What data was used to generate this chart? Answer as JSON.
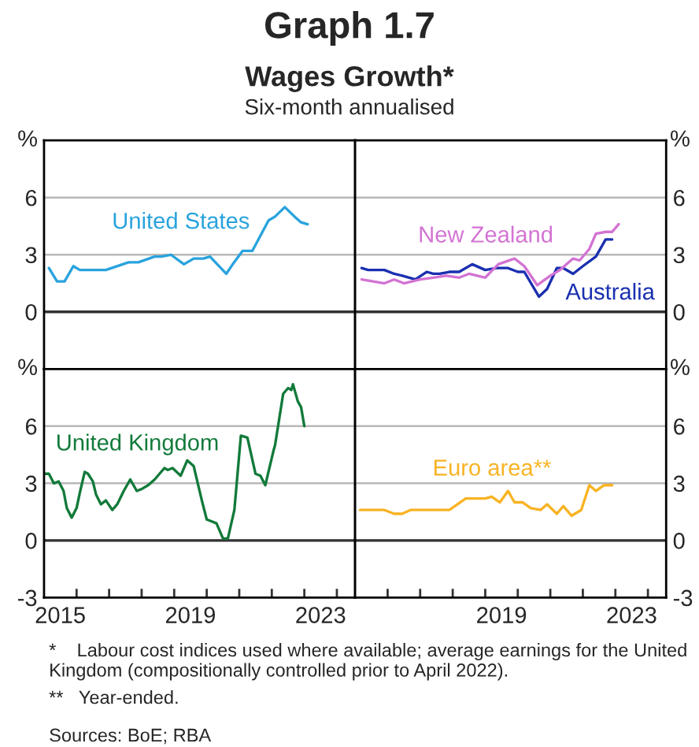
{
  "chart_data": [
    {
      "type": "line",
      "title": "Graph 1.7",
      "subtitle": "Wages Growth*",
      "annotations": [
        "Six-month annualised"
      ],
      "ylabel": "%",
      "xlim": [
        2015,
        2024.56
      ],
      "ylim": [
        -3,
        9
      ],
      "yticks": [
        6,
        3,
        0
      ],
      "grid": "y",
      "tick_labels": "y",
      "ref_lines": [
        {
          "axis": "y",
          "value": 0,
          "color": "#333333"
        }
      ],
      "series": [
        {
          "name": "United States",
          "color": "#29a3dd",
          "x": [
            2015.15,
            2015.4,
            2015.63,
            2015.9,
            2016.1,
            2016.9,
            2017.6,
            2017.9,
            2018.4,
            2018.6,
            2018.9,
            2019.3,
            2019.6,
            2019.9,
            2020.1,
            2020.6,
            2020.8,
            2021.1,
            2021.4,
            2021.9,
            2022.1,
            2022.4,
            2022.7,
            2022.9,
            2023.1
          ],
          "values": [
            2.3,
            1.6,
            1.6,
            2.4,
            2.2,
            2.2,
            2.6,
            2.6,
            2.9,
            2.9,
            3.0,
            2.5,
            2.8,
            2.8,
            2.9,
            2.0,
            2.5,
            3.2,
            3.2,
            4.8,
            5.0,
            5.5,
            5.0,
            4.7,
            4.6
          ]
        }
      ]
    },
    {
      "type": "line",
      "ylabel": "%",
      "xlim": [
        2015,
        2024.56
      ],
      "ylim": [
        -3,
        9
      ],
      "yticks": [
        6,
        3,
        0
      ],
      "grid": "y",
      "tick_labels": "y",
      "ref_lines": [
        {
          "axis": "y",
          "value": 0,
          "color": "#333333"
        }
      ],
      "series": [
        {
          "name": "Australia",
          "color": "#1a2fb0",
          "x": [
            2015.2,
            2015.4,
            2015.9,
            2016.2,
            2016.45,
            2016.85,
            2017.2,
            2017.4,
            2017.6,
            2017.9,
            2018.2,
            2018.6,
            2019.0,
            2019.35,
            2019.7,
            2020.0,
            2020.2,
            2020.65,
            2020.9,
            2021.2,
            2021.4,
            2021.7,
            2022.0,
            2022.4,
            2022.7,
            2022.9
          ],
          "values": [
            2.3,
            2.2,
            2.2,
            2.0,
            1.9,
            1.7,
            2.1,
            2.0,
            2.0,
            2.1,
            2.1,
            2.5,
            2.2,
            2.3,
            2.3,
            2.1,
            2.1,
            0.8,
            1.2,
            2.3,
            2.3,
            2.0,
            2.4,
            2.9,
            3.8,
            3.8
          ]
        },
        {
          "name": "New Zealand",
          "color": "#d373d3",
          "x": [
            2015.2,
            2015.55,
            2015.9,
            2016.2,
            2016.5,
            2017.0,
            2017.4,
            2017.8,
            2018.2,
            2018.5,
            2019.0,
            2019.4,
            2019.9,
            2020.2,
            2020.6,
            2021.0,
            2021.3,
            2021.7,
            2021.9,
            2022.2,
            2022.4,
            2022.7,
            2022.9,
            2023.1
          ],
          "values": [
            1.7,
            1.6,
            1.5,
            1.7,
            1.5,
            1.7,
            1.8,
            1.9,
            1.8,
            2.0,
            1.8,
            2.5,
            2.8,
            2.4,
            1.4,
            1.9,
            2.2,
            2.8,
            2.7,
            3.3,
            4.1,
            4.2,
            4.2,
            4.6
          ]
        }
      ]
    },
    {
      "type": "line",
      "ylabel": "%",
      "xlim": [
        2015,
        2024.56
      ],
      "ylim": [
        -3,
        9
      ],
      "yticks": [
        6,
        3,
        0,
        -3
      ],
      "grid": "y",
      "ref_lines": [
        {
          "axis": "y",
          "value": 0,
          "color": "#333333"
        }
      ],
      "xticks": [
        {
          "value": 2015.5,
          "label": "2015"
        },
        {
          "value": 2019.5,
          "label": "2019"
        },
        {
          "value": 2023.5,
          "label": "2023"
        },
        {
          "value": 2016,
          "label": null
        },
        {
          "value": 2017,
          "label": null
        },
        {
          "value": 2018,
          "label": null
        },
        {
          "value": 2019,
          "label": null
        },
        {
          "value": 2020,
          "label": null
        },
        {
          "value": 2021,
          "label": null
        },
        {
          "value": 2022,
          "label": null
        },
        {
          "value": 2023,
          "label": null
        },
        {
          "value": 2024,
          "label": null
        }
      ],
      "series": [
        {
          "name": "United Kingdom",
          "color": "#127a3a",
          "x": [
            2015.0,
            2015.15,
            2015.3,
            2015.45,
            2015.6,
            2015.7,
            2015.85,
            2016.0,
            2016.1,
            2016.25,
            2016.35,
            2016.5,
            2016.6,
            2016.75,
            2016.9,
            2017.1,
            2017.25,
            2017.45,
            2017.65,
            2017.85,
            2018.0,
            2018.2,
            2018.4,
            2018.7,
            2018.8,
            2018.95,
            2019.2,
            2019.4,
            2019.6,
            2019.85,
            2020.0,
            2020.3,
            2020.5,
            2020.65,
            2020.85,
            2021.05,
            2021.25,
            2021.5,
            2021.65,
            2021.8,
            2022.05,
            2022.1,
            2022.35,
            2022.5,
            2022.6,
            2022.65,
            2022.8,
            2022.9,
            2023.0
          ],
          "values": [
            3.5,
            3.5,
            3.0,
            3.1,
            2.6,
            1.7,
            1.2,
            1.7,
            2.5,
            3.6,
            3.5,
            3.1,
            2.4,
            1.9,
            2.1,
            1.6,
            1.9,
            2.6,
            3.2,
            2.6,
            2.7,
            2.9,
            3.2,
            3.8,
            3.7,
            3.8,
            3.4,
            4.2,
            3.9,
            2.1,
            1.1,
            0.9,
            0.1,
            0.1,
            1.6,
            5.5,
            5.4,
            3.5,
            3.4,
            2.9,
            4.7,
            5.0,
            7.7,
            8.0,
            7.9,
            8.2,
            7.3,
            7.0,
            6.0
          ]
        }
      ]
    },
    {
      "type": "line",
      "ylabel": "%",
      "xlim": [
        2015,
        2024.56
      ],
      "ylim": [
        -3,
        9
      ],
      "yticks": [
        6,
        3,
        0,
        -3
      ],
      "grid": "y",
      "ref_lines": [
        {
          "axis": "y",
          "value": 0,
          "color": "#333333"
        }
      ],
      "xticks": [
        {
          "value": 2019.5,
          "label": "2019"
        },
        {
          "value": 2023.5,
          "label": "2023"
        },
        {
          "value": 2016,
          "label": null
        },
        {
          "value": 2017,
          "label": null
        },
        {
          "value": 2018,
          "label": null
        },
        {
          "value": 2019,
          "label": null
        },
        {
          "value": 2020,
          "label": null
        },
        {
          "value": 2021,
          "label": null
        },
        {
          "value": 2022,
          "label": null
        },
        {
          "value": 2023,
          "label": null
        },
        {
          "value": 2024,
          "label": null
        }
      ],
      "annotations": [
        "*    Labour cost indices used where available; average earnings for the United Kingdom (compositionally controlled prior to April 2022).",
        "**   Year-ended.",
        "Sources: BoE; RBA"
      ],
      "series": [
        {
          "name": "Euro area**",
          "color": "#f8b323",
          "x": [
            2015.15,
            2015.9,
            2016.2,
            2016.45,
            2016.7,
            2016.95,
            2017.2,
            2017.35,
            2017.9,
            2018.4,
            2019.0,
            2019.2,
            2019.45,
            2019.7,
            2019.9,
            2020.15,
            2020.4,
            2020.7,
            2020.9,
            2021.2,
            2021.4,
            2021.65,
            2021.95,
            2022.2,
            2022.4,
            2022.65,
            2022.9
          ],
          "values": [
            1.6,
            1.6,
            1.4,
            1.4,
            1.6,
            1.6,
            1.6,
            1.6,
            1.6,
            2.2,
            2.2,
            2.3,
            2.0,
            2.6,
            2.0,
            2.0,
            1.7,
            1.6,
            1.9,
            1.4,
            1.8,
            1.3,
            1.6,
            2.9,
            2.6,
            2.9,
            2.9
          ]
        }
      ]
    }
  ]
}
